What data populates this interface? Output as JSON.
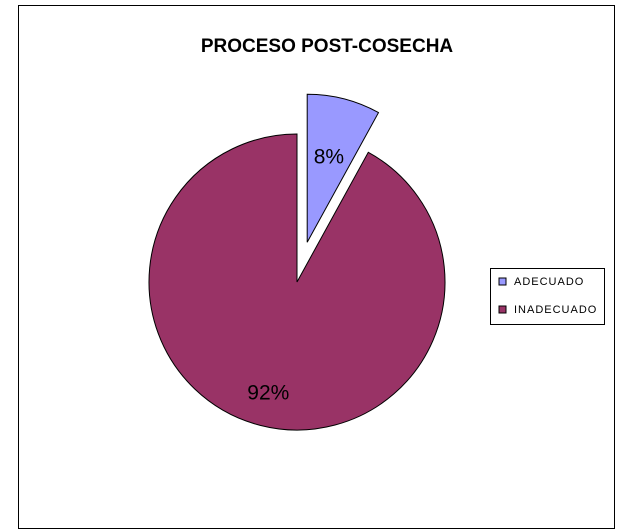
{
  "chart_data": {
    "type": "pie",
    "title": "PROCESO POST-COSECHA",
    "categories": [
      "ADECUADO",
      "INADECUADO"
    ],
    "values": [
      8,
      92
    ],
    "value_labels": [
      "8%",
      "92%"
    ],
    "colors": [
      "#9999ff",
      "#993366"
    ],
    "legend": "right"
  }
}
